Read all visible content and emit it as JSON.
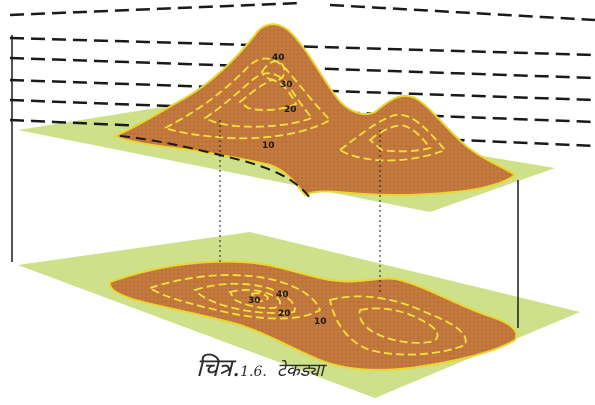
{
  "caption": {
    "figure_prefix": "चित्र.",
    "figure_number": "1.6.",
    "title": "टेकड्या"
  },
  "diagram": {
    "colors": {
      "plane": "#cfe08a",
      "terrain": "#c47a3e",
      "contour": "#f2e23a",
      "frame": "#1a1a1a"
    },
    "upper_labels": [
      {
        "text": "40"
      },
      {
        "text": "30"
      },
      {
        "text": "20"
      },
      {
        "text": "10"
      }
    ],
    "lower_labels": [
      {
        "text": "40"
      },
      {
        "text": "30"
      },
      {
        "text": "20"
      },
      {
        "text": "10"
      }
    ]
  }
}
